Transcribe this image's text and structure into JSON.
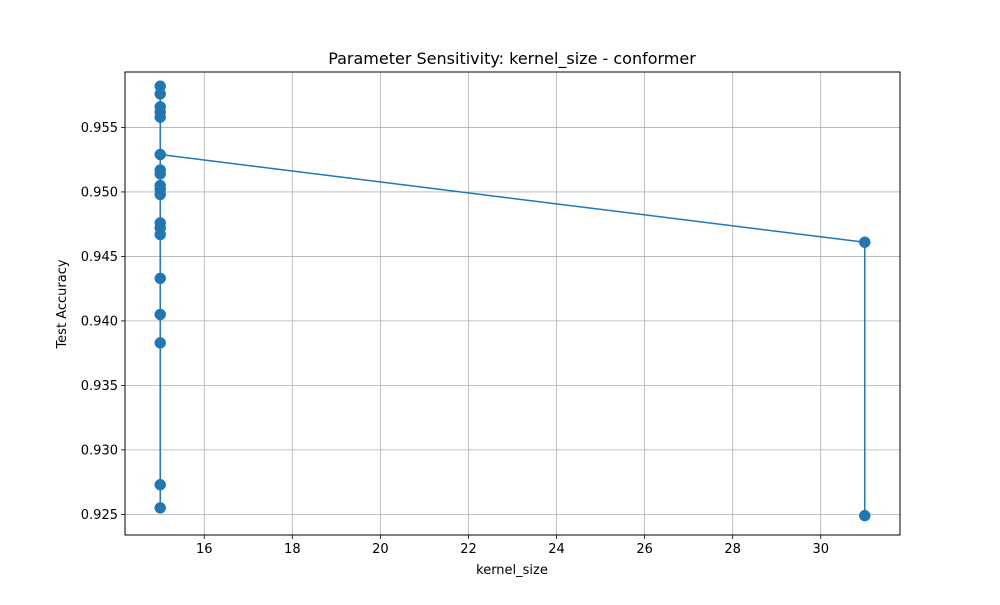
{
  "chart_data": {
    "type": "line",
    "title": "Parameter Sensitivity: kernel_size - conformer",
    "xlabel": "kernel_size",
    "ylabel": "Test Accuracy",
    "xlim": [
      14.2,
      31.8
    ],
    "ylim": [
      0.9234,
      0.9593
    ],
    "xticks": [
      16,
      18,
      20,
      22,
      24,
      26,
      28,
      30
    ],
    "xtick_labels": [
      "16",
      "18",
      "20",
      "22",
      "24",
      "26",
      "28",
      "30"
    ],
    "yticks": [
      0.925,
      0.93,
      0.935,
      0.94,
      0.945,
      0.95,
      0.955
    ],
    "ytick_labels": [
      "0.925",
      "0.930",
      "0.935",
      "0.940",
      "0.945",
      "0.950",
      "0.955"
    ],
    "grid": true,
    "legend": "none",
    "series": [
      {
        "color": "#1f77b4",
        "marker": "circle",
        "points": [
          {
            "x": 31,
            "y": 0.9249
          },
          {
            "x": 31,
            "y": 0.9461
          },
          {
            "x": 15,
            "y": 0.9529
          },
          {
            "x": 15,
            "y": 0.9558
          },
          {
            "x": 15,
            "y": 0.9562
          },
          {
            "x": 15,
            "y": 0.9566
          },
          {
            "x": 15,
            "y": 0.9576
          },
          {
            "x": 15,
            "y": 0.9582
          },
          {
            "x": 15,
            "y": 0.9517
          },
          {
            "x": 15,
            "y": 0.9514
          },
          {
            "x": 15,
            "y": 0.9505
          },
          {
            "x": 15,
            "y": 0.9502
          },
          {
            "x": 15,
            "y": 0.9498
          },
          {
            "x": 15,
            "y": 0.9476
          },
          {
            "x": 15,
            "y": 0.9472
          },
          {
            "x": 15,
            "y": 0.9467
          },
          {
            "x": 15,
            "y": 0.9433
          },
          {
            "x": 15,
            "y": 0.9405
          },
          {
            "x": 15,
            "y": 0.9383
          },
          {
            "x": 15,
            "y": 0.9273
          },
          {
            "x": 15,
            "y": 0.9255
          }
        ]
      }
    ]
  }
}
